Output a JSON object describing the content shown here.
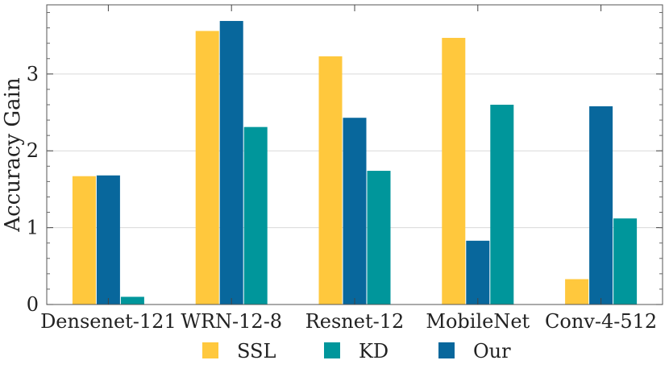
{
  "chart_data": {
    "type": "bar",
    "title": "",
    "xlabel": "",
    "ylabel": "Accuracy Gain",
    "ylim": [
      0,
      3.9
    ],
    "yticks": [
      0,
      1,
      2,
      3
    ],
    "grid": "horizontal",
    "legend_position": "bottom",
    "categories": [
      "Densenet-121",
      "WRN-12-8",
      "Resnet-12",
      "MobileNet",
      "Conv-4-512"
    ],
    "series": [
      {
        "name": "SSL",
        "color": "#ffc83d",
        "bar_order": [
          0,
          0,
          0,
          0,
          0
        ],
        "values": [
          1.67,
          3.56,
          3.23,
          3.47,
          0.33
        ]
      },
      {
        "name": "KD",
        "color": "#00969b",
        "bar_order": [
          2,
          2,
          2,
          2,
          2
        ],
        "values": [
          0.1,
          2.31,
          1.74,
          2.6,
          1.12
        ]
      },
      {
        "name": "Our",
        "color": "#08679c",
        "bar_order": [
          1,
          1,
          1,
          1,
          1
        ],
        "values": [
          1.68,
          3.69,
          2.43,
          0.83,
          2.58
        ]
      }
    ]
  }
}
